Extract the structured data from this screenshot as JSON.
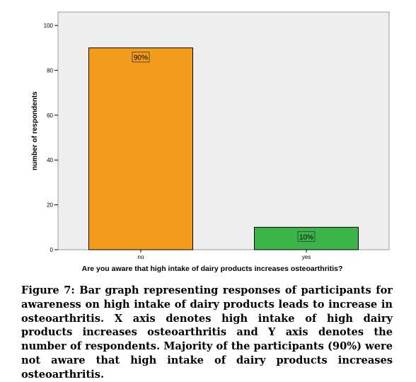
{
  "chart_data": {
    "type": "bar",
    "categories": [
      "no",
      "yes"
    ],
    "values": [
      90,
      10
    ],
    "data_labels": [
      "90%",
      "10%"
    ],
    "bar_colors": [
      "#f39b1c",
      "#3bb54a"
    ],
    "xlabel": "Are you aware that high intake of dairy products increases osteoarthritis?",
    "ylabel": "number of respondents",
    "ylim": [
      0,
      100
    ],
    "yticks": [
      "0",
      "20",
      "40",
      "60",
      "80",
      "100"
    ],
    "plot_background": "#eeeeee",
    "grid": false
  },
  "caption": "Figure 7: Bar graph representing responses of participants for awareness on high intake of dairy products leads to increase in osteoarthritis. X axis denotes high intake of high dairy products increases osteoarthritis and Y axis denotes the number of respondents. Majority of the participants (90%) were not aware that high intake of dairy products increases osteoarthritis."
}
